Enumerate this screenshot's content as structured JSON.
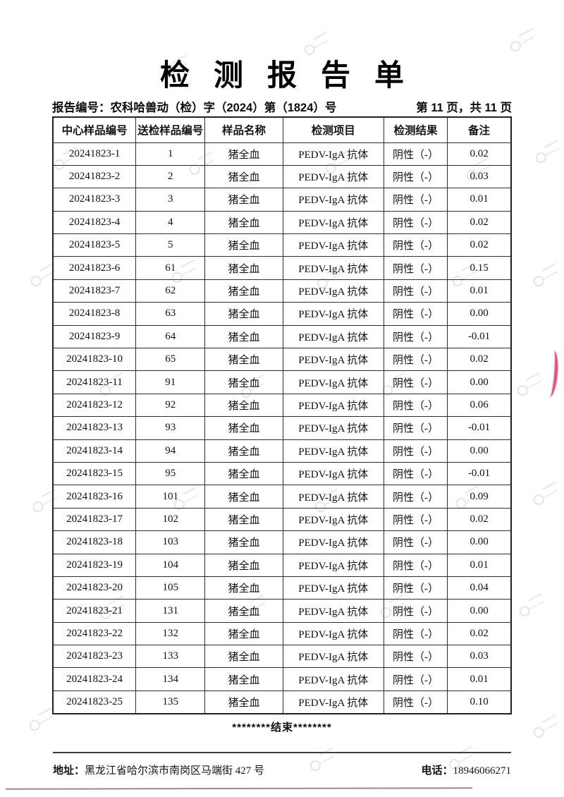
{
  "page": {
    "title": "检测报告单",
    "report_no": "报告编号：农科哈兽动（检）字（2024）第（1824）号",
    "page_info": "第 11 页，共 11 页"
  },
  "table": {
    "headers": [
      "中心样品编号",
      "送检样品编号",
      "样品名称",
      "检测项目",
      "检测结果",
      "备注"
    ],
    "rows": [
      [
        "20241823-1",
        "1",
        "猪全血",
        "PEDV-IgA 抗体",
        "阴性（-）",
        "0.02"
      ],
      [
        "20241823-2",
        "2",
        "猪全血",
        "PEDV-IgA 抗体",
        "阴性（-）",
        "0.03"
      ],
      [
        "20241823-3",
        "3",
        "猪全血",
        "PEDV-IgA 抗体",
        "阴性（-）",
        "0.01"
      ],
      [
        "20241823-4",
        "4",
        "猪全血",
        "PEDV-IgA 抗体",
        "阴性（-）",
        "0.02"
      ],
      [
        "20241823-5",
        "5",
        "猪全血",
        "PEDV-IgA 抗体",
        "阴性（-）",
        "0.02"
      ],
      [
        "20241823-6",
        "61",
        "猪全血",
        "PEDV-IgA 抗体",
        "阴性（-）",
        "0.15"
      ],
      [
        "20241823-7",
        "62",
        "猪全血",
        "PEDV-IgA 抗体",
        "阴性（-）",
        "0.01"
      ],
      [
        "20241823-8",
        "63",
        "猪全血",
        "PEDV-IgA 抗体",
        "阴性（-）",
        "0.00"
      ],
      [
        "20241823-9",
        "64",
        "猪全血",
        "PEDV-IgA 抗体",
        "阴性（-）",
        "-0.01"
      ],
      [
        "20241823-10",
        "65",
        "猪全血",
        "PEDV-IgA 抗体",
        "阴性（-）",
        "0.02"
      ],
      [
        "20241823-11",
        "91",
        "猪全血",
        "PEDV-IgA 抗体",
        "阴性（-）",
        "0.00"
      ],
      [
        "20241823-12",
        "92",
        "猪全血",
        "PEDV-IgA 抗体",
        "阴性（-）",
        "0.06"
      ],
      [
        "20241823-13",
        "93",
        "猪全血",
        "PEDV-IgA 抗体",
        "阴性（-）",
        "-0.01"
      ],
      [
        "20241823-14",
        "94",
        "猪全血",
        "PEDV-IgA 抗体",
        "阴性（-）",
        "0.00"
      ],
      [
        "20241823-15",
        "95",
        "猪全血",
        "PEDV-IgA 抗体",
        "阴性（-）",
        "-0.01"
      ],
      [
        "20241823-16",
        "101",
        "猪全血",
        "PEDV-IgA 抗体",
        "阴性（-）",
        "0.09"
      ],
      [
        "20241823-17",
        "102",
        "猪全血",
        "PEDV-IgA 抗体",
        "阴性（-）",
        "0.02"
      ],
      [
        "20241823-18",
        "103",
        "猪全血",
        "PEDV-IgA 抗体",
        "阴性（-）",
        "0.00"
      ],
      [
        "20241823-19",
        "104",
        "猪全血",
        "PEDV-IgA 抗体",
        "阴性（-）",
        "0.01"
      ],
      [
        "20241823-20",
        "105",
        "猪全血",
        "PEDV-IgA 抗体",
        "阴性（-）",
        "0.04"
      ],
      [
        "20241823-21",
        "131",
        "猪全血",
        "PEDV-IgA 抗体",
        "阴性（-）",
        "0.00"
      ],
      [
        "20241823-22",
        "132",
        "猪全血",
        "PEDV-IgA 抗体",
        "阴性（-）",
        "0.02"
      ],
      [
        "20241823-23",
        "133",
        "猪全血",
        "PEDV-IgA 抗体",
        "阴性（-）",
        "0.03"
      ],
      [
        "20241823-24",
        "134",
        "猪全血",
        "PEDV-IgA 抗体",
        "阴性（-）",
        "0.01"
      ],
      [
        "20241823-25",
        "135",
        "猪全血",
        "PEDV-IgA 抗体",
        "阴性（-）",
        "0.10"
      ]
    ]
  },
  "footer": {
    "end_marker": "********结束********",
    "address_label": "地址：",
    "address": "黑龙江省哈尔滨市南岗区马端街 427 号",
    "phone_label": "电话：",
    "phone": "18946066271"
  },
  "colors": {
    "stamp_red": "#db345f",
    "border_dark": "#2c2c2c",
    "watermark_gray": "#e2e6e9"
  }
}
